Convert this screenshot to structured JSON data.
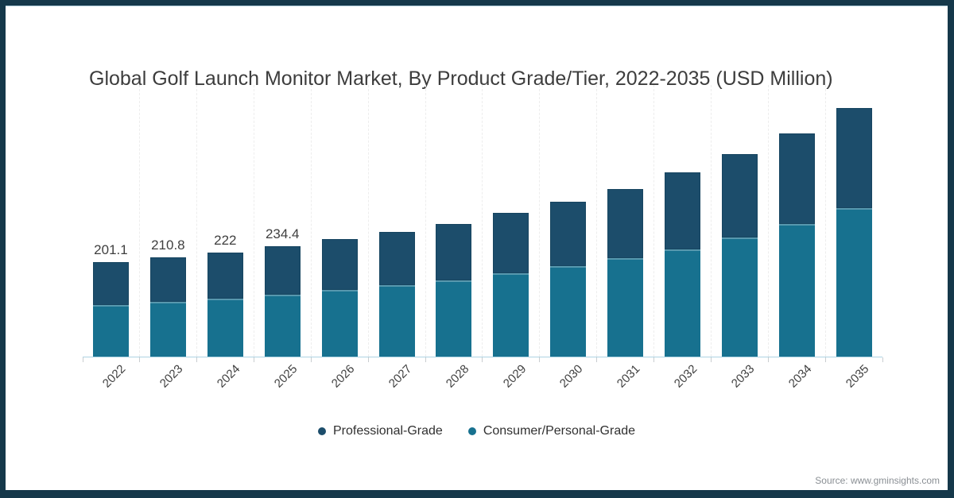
{
  "frame": {
    "border_color": "#15384a",
    "background": "#ffffff"
  },
  "header": {
    "title": "Global Golf Launch Monitor Market, By Product Grade/Tier, 2022-2035 (USD Million)"
  },
  "footer": {
    "source": "Source: www.gminsights.com"
  },
  "legend": {
    "items": [
      {
        "label": "Professional-Grade",
        "color": "#1c4d6b"
      },
      {
        "label": "Consumer/Personal-Grade",
        "color": "#17718f"
      }
    ]
  },
  "chart_data": {
    "type": "bar",
    "stacked": true,
    "title": "Global Golf Launch Monitor Market, By Product Grade/Tier, 2022-2035 (USD Million)",
    "unit": "USD Million",
    "categories": [
      "2022",
      "2023",
      "2024",
      "2025",
      "2026",
      "2027",
      "2028",
      "2029",
      "2030",
      "2031",
      "2032",
      "2033",
      "2034",
      "2035"
    ],
    "series": [
      {
        "name": "Professional-Grade",
        "color": "#1c4d6b",
        "stack_order": "top",
        "values": [
          91.1,
          94.0,
          98.4,
          102.3,
          108,
          114,
          120,
          128,
          137,
          147,
          164,
          178,
          193,
          214
        ]
      },
      {
        "name": "Consumer/Personal-Grade",
        "color": "#17718f",
        "stack_order": "bottom",
        "values": [
          110.0,
          116.8,
          123.6,
          132.1,
          142,
          152,
          163,
          178,
          193,
          210,
          229,
          254,
          283,
          316
        ]
      }
    ],
    "totals": [
      201.1,
      210.8,
      222,
      234.4,
      250,
      266,
      283,
      306,
      330,
      357,
      393,
      432,
      476,
      530
    ],
    "visible_total_labels": [
      "201.1",
      "210.8",
      "222",
      "234.4",
      "",
      "",
      "",
      "",
      "",
      "",
      "",
      "",
      "",
      ""
    ],
    "ylim": [
      0,
      580
    ],
    "grid": "faint dashed vertical lines at category boundaries",
    "axis_line_color": "#aed3e3",
    "legend_position": "bottom-center"
  }
}
